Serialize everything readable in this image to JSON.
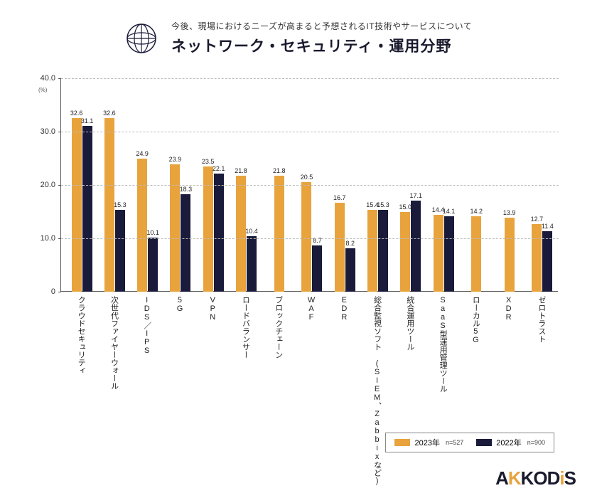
{
  "header": {
    "subtitle": "今後、現場におけるニーズが高まると予想されるIT技術やサービスについて",
    "title": "ネットワーク・セキュリティ・運用分野"
  },
  "chart": {
    "type": "bar",
    "ymax": 40.0,
    "ymin": 0,
    "ytick_step": 10,
    "yunit": "(%)",
    "grid_color": "#bbbbbb",
    "axis_color": "#555555",
    "background_color": "#ffffff",
    "label_fontsize": 9,
    "series": [
      {
        "key": "y2023",
        "label": "2023年",
        "n": "n=527",
        "color": "#e8a33d"
      },
      {
        "key": "y2022",
        "label": "2022年",
        "n": "n=900",
        "color": "#1a1a3a"
      }
    ],
    "categories": [
      {
        "label": "クラウドセキュリティ",
        "y2023": 32.6,
        "y2022": 31.1
      },
      {
        "label": "次世代ファイヤーウォール",
        "y2023": 32.6,
        "y2022": 15.3
      },
      {
        "label": "IDS／IPS",
        "y2023": 24.9,
        "y2022": 10.1
      },
      {
        "label": "5G",
        "y2023": 23.9,
        "y2022": 18.3
      },
      {
        "label": "VPN",
        "y2023": 23.5,
        "y2022": 22.1
      },
      {
        "label": "ロードバランサー",
        "y2023": 21.8,
        "y2022": 10.4
      },
      {
        "label": "ブロックチェーン",
        "y2023": 21.8,
        "y2022": null
      },
      {
        "label": "WAF",
        "y2023": 20.5,
        "y2022": 8.7
      },
      {
        "label": "EDR",
        "y2023": 16.7,
        "y2022": 8.2
      },
      {
        "label": "総合監視ソフト\n(SIEM、Zabbixなど)",
        "y2023": 15.4,
        "y2022": 15.3
      },
      {
        "label": "統合運用ツール",
        "y2023": 15.0,
        "y2022": 17.1
      },
      {
        "label": "SaaS型運用管理ツール",
        "y2023": 14.4,
        "y2022": 14.1
      },
      {
        "label": "ローカル5G",
        "y2023": 14.2,
        "y2022": null
      },
      {
        "label": "XDR",
        "y2023": 13.9,
        "y2022": null
      },
      {
        "label": "ゼロトラスト",
        "y2023": 12.7,
        "y2022": 11.4
      }
    ]
  },
  "logo": {
    "text": "AKKODiS",
    "accent_color": "#e8a33d",
    "base_color": "#1a1a2e"
  }
}
